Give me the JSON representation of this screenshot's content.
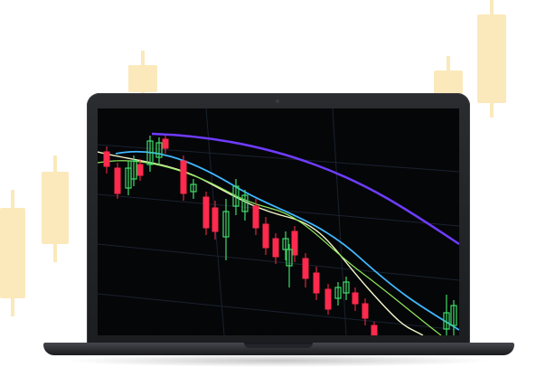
{
  "scene": {
    "description_name": "laptop-with-candlestick-chart",
    "colors": {
      "background": "#ffffff",
      "bg_candle": "#fbe6b0",
      "bull": "#3fdc6a",
      "bear": "#ff2a4d",
      "ma_slow": "#6f3cff",
      "ma_mid": "#3fb8ff",
      "ma_fast": "#f4f7c8",
      "ma_green": "#8fe85a",
      "grid": "#1f2a3a"
    }
  }
}
